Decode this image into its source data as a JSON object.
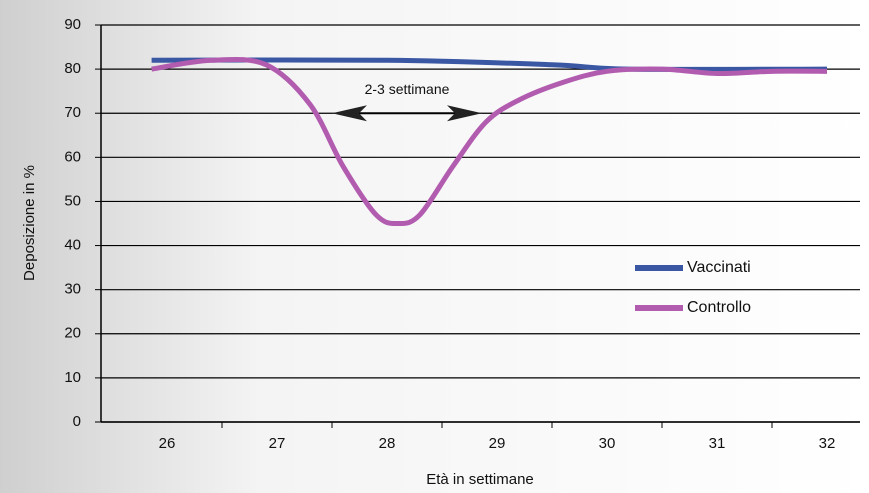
{
  "chart_data": {
    "type": "line",
    "y_label": "Deposizione in %",
    "x_label": "Età in settimane",
    "annotation": "2-3 settimane",
    "xlim": [
      25.4,
      32.3
    ],
    "xticks": [
      26,
      27,
      28,
      29,
      30,
      31,
      32
    ],
    "ylim": [
      0,
      90
    ],
    "yticks": [
      0,
      10,
      20,
      30,
      40,
      50,
      60,
      70,
      80,
      90
    ],
    "grid": true,
    "legend": "lower right",
    "series": [
      {
        "name": "Vaccinati",
        "color": "#3a57a4",
        "x": [
          25.86,
          28,
          29.5,
          30.2,
          32
        ],
        "values": [
          82,
          82,
          81,
          80,
          80
        ]
      },
      {
        "name": "Controllo",
        "color": "#b25cb0",
        "x": [
          25.86,
          26.4,
          26.9,
          27.3,
          27.6,
          27.9,
          28.1,
          28.3,
          28.6,
          28.9,
          29.2,
          29.6,
          30.0,
          30.5,
          31.0,
          31.5,
          32.0
        ],
        "values": [
          80,
          82,
          81,
          72,
          58,
          47,
          45,
          47,
          58,
          68,
          73,
          77,
          79.5,
          80,
          79,
          79.5,
          79.5
        ]
      }
    ]
  }
}
